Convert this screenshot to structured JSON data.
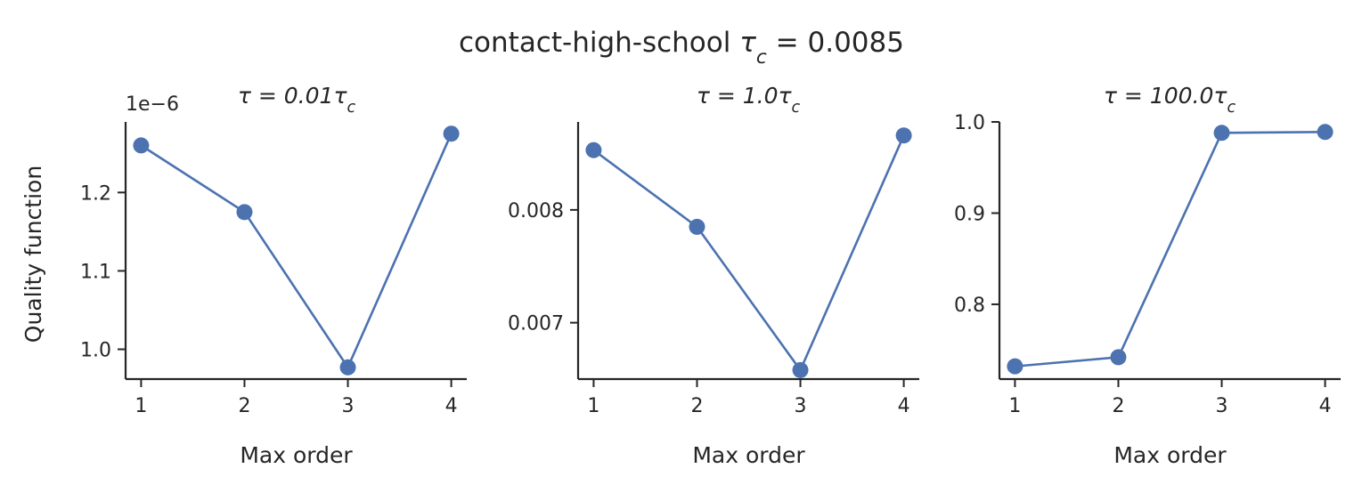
{
  "figure": {
    "title": "contact-high-school τ_c = 0.0085"
  },
  "colors": {
    "series": "#4c72b0",
    "axis": "#262626",
    "background": "#ffffff"
  },
  "chart_data": [
    {
      "type": "line",
      "title": "τ = 0.01τ_c",
      "xlabel": "Max order",
      "ylabel": "Quality function",
      "x": [
        1,
        2,
        3,
        4
      ],
      "values": [
        1.26e-06,
        1.175e-06,
        9.77e-07,
        1.275e-06
      ],
      "y_offset_label": "1e−6",
      "xticks": [
        1,
        2,
        3,
        4
      ],
      "yticks": [
        1e-06,
        1.1e-06,
        1.2e-06
      ],
      "ytick_labels": [
        "1.0",
        "1.1",
        "1.2"
      ],
      "xlim": [
        0.85,
        4.15
      ],
      "ylim": [
        9.62e-07,
        1.29e-06
      ],
      "grid": false,
      "markers": true
    },
    {
      "type": "line",
      "title": "τ = 1.0τ_c",
      "xlabel": "Max order",
      "ylabel": "",
      "x": [
        1,
        2,
        3,
        4
      ],
      "values": [
        0.00853,
        0.00785,
        0.00658,
        0.00866
      ],
      "xticks": [
        1,
        2,
        3,
        4
      ],
      "yticks": [
        0.007,
        0.008
      ],
      "ytick_labels": [
        "0.007",
        "0.008"
      ],
      "xlim": [
        0.85,
        4.15
      ],
      "ylim": [
        0.0065,
        0.00878
      ],
      "grid": false,
      "markers": true
    },
    {
      "type": "line",
      "title": "τ = 100.0τ_c",
      "xlabel": "Max order",
      "ylabel": "",
      "x": [
        1,
        2,
        3,
        4
      ],
      "values": [
        0.732,
        0.742,
        0.988,
        0.989
      ],
      "xticks": [
        1,
        2,
        3,
        4
      ],
      "yticks": [
        0.8,
        0.9,
        1.0
      ],
      "ytick_labels": [
        "0.8",
        "0.9",
        "1.0"
      ],
      "xlim": [
        0.85,
        4.15
      ],
      "ylim": [
        0.718,
        1.0
      ],
      "grid": false,
      "markers": true
    }
  ]
}
